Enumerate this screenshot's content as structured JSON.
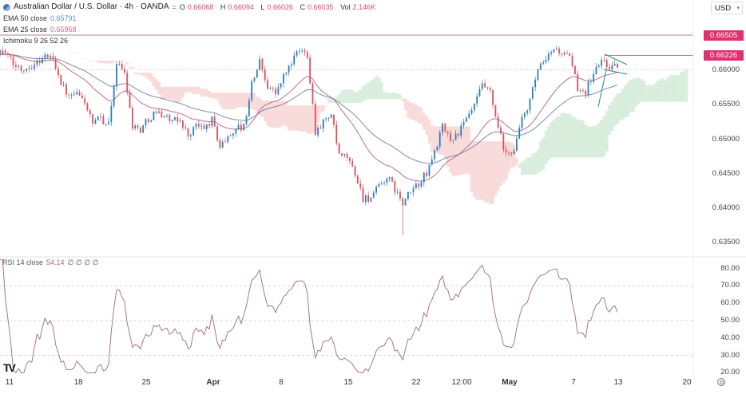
{
  "header": {
    "symbol_title": "Australian Dollar / U.S. Dollar · 4h · OANDA",
    "ohlc": {
      "o_label": "O",
      "o": "0.66068",
      "h_label": "H",
      "h": "0.66094",
      "l_label": "L",
      "l": "0.66026",
      "c_label": "C",
      "c": "0.66035",
      "vol_label": "Vol",
      "vol": "2.146K"
    },
    "currency": "USD"
  },
  "indicators": {
    "ema50": {
      "label": "EMA 50 close",
      "value": "0.65791",
      "color": "#6b7fb0"
    },
    "ema25": {
      "label": "EMA 25 close",
      "value": "0.65958",
      "color": "#b8607e"
    },
    "ichimoku": {
      "label": "Ichimoku 9 26 52 26"
    },
    "rsi": {
      "label": "RSI 14 close",
      "value": "54.14",
      "extras": "∅ ∅ ∅ ∅",
      "color": "#a0687e"
    }
  },
  "colors": {
    "up": "#2e7db8",
    "down": "#d9505a",
    "badge": "#e0306e",
    "cloud_up": "#cfe8d3",
    "cloud_down": "#f6d0cf"
  },
  "price_axis": {
    "ticks": [
      "0.66000",
      "0.65500",
      "0.65000",
      "0.64500",
      "0.64000",
      "0.63500"
    ],
    "badges": [
      "0.66505",
      "0.66226"
    ]
  },
  "rsi_axis": {
    "ticks": [
      "80.00",
      "70.00",
      "60.00",
      "50.00",
      "40.00",
      "30.00",
      "20.00"
    ]
  },
  "time_axis": {
    "labels": [
      "11",
      "18",
      "25",
      "Apr",
      "8",
      "15",
      "22",
      "12:00",
      "May",
      "7",
      "13",
      "20"
    ]
  },
  "chart_data": {
    "type": "candlestick",
    "title": "Australian Dollar / U.S. Dollar · 4h · OANDA",
    "ylim": [
      0.6335,
      0.667
    ],
    "rsi_ylim": [
      20,
      80
    ],
    "rsi_levels": [
      70,
      50,
      30
    ],
    "resistance_level": 0.66505,
    "marked_level": 0.66226,
    "last_price": 0.66035,
    "spike_low": 0.6361,
    "close_path": [
      0.663,
      0.6625,
      0.6608,
      0.6602,
      0.6606,
      0.6612,
      0.662,
      0.6618,
      0.6583,
      0.656,
      0.6565,
      0.6555,
      0.652,
      0.6531,
      0.652,
      0.661,
      0.6598,
      0.652,
      0.6514,
      0.653,
      0.654,
      0.6535,
      0.6525,
      0.6528,
      0.6505,
      0.652,
      0.6515,
      0.6528,
      0.649,
      0.6502,
      0.6517,
      0.6517,
      0.658,
      0.6613,
      0.6578,
      0.6566,
      0.659,
      0.6612,
      0.6628,
      0.6624,
      0.6512,
      0.6525,
      0.6536,
      0.6474,
      0.6474,
      0.645,
      0.6415,
      0.6415,
      0.643,
      0.6445,
      0.6428,
      0.6405,
      0.6424,
      0.6436,
      0.645,
      0.6482,
      0.6517,
      0.65,
      0.6509,
      0.6528,
      0.6548,
      0.6578,
      0.6566,
      0.6515,
      0.6475,
      0.6486,
      0.6528,
      0.6555,
      0.66,
      0.6613,
      0.6632,
      0.6625,
      0.6617,
      0.6575,
      0.657,
      0.6595,
      0.6615,
      0.6606,
      0.66035
    ]
  }
}
